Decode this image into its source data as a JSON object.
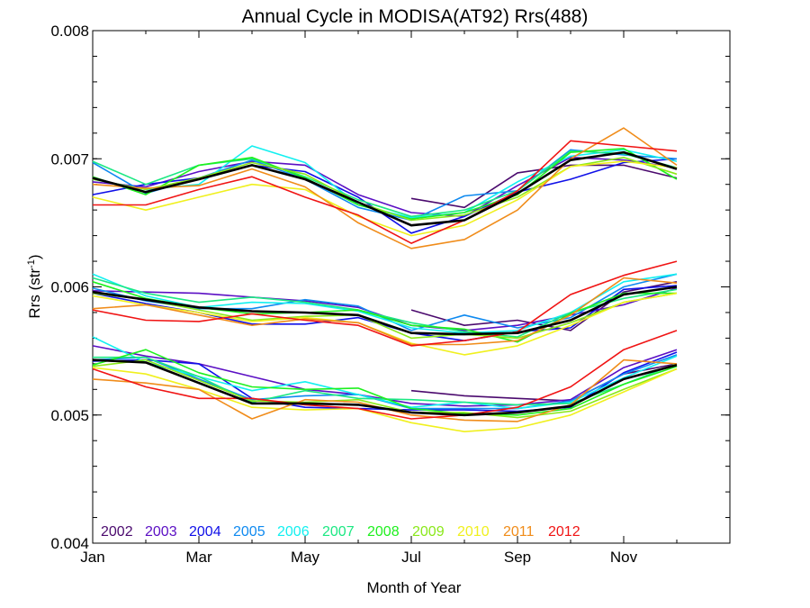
{
  "chart_data": {
    "type": "line",
    "title": "Annual Cycle in MODISA(AT92) Rrs(488)",
    "xlabel": "Month of Year",
    "ylabel_main": "Rrs (str",
    "ylabel_sup": "-1",
    "ylabel_close": ")",
    "xlim": [
      1,
      13
    ],
    "ylim": [
      0.004,
      0.008
    ],
    "xticks": [
      {
        "v": 1,
        "label": "Jan"
      },
      {
        "v": 3,
        "label": "Mar"
      },
      {
        "v": 5,
        "label": "May"
      },
      {
        "v": 7,
        "label": "Jul"
      },
      {
        "v": 9,
        "label": "Sep"
      },
      {
        "v": 11,
        "label": "Nov"
      }
    ],
    "yticks": [
      {
        "v": 0.004,
        "label": "0.004"
      },
      {
        "v": 0.005,
        "label": "0.005"
      },
      {
        "v": 0.006,
        "label": "0.006"
      },
      {
        "v": 0.007,
        "label": "0.007"
      },
      {
        "v": 0.008,
        "label": "0.008"
      }
    ],
    "x": [
      1,
      2,
      3,
      4,
      5,
      6,
      7,
      8,
      9,
      10,
      11,
      12
    ],
    "legend_position": "bottom-left",
    "series": [
      {
        "name": "2002",
        "color": "#4b0a6e",
        "top": [
          null,
          null,
          null,
          null,
          null,
          null,
          6.69,
          6.62,
          6.89,
          6.95,
          6.95,
          6.85
        ],
        "mid": [
          null,
          null,
          null,
          null,
          null,
          null,
          5.82,
          5.7,
          5.74,
          5.66,
          5.96,
          6.04
        ],
        "bot": [
          null,
          null,
          null,
          null,
          null,
          null,
          5.19,
          5.15,
          5.13,
          5.11,
          5.32,
          5.4
        ]
      },
      {
        "name": "2003",
        "color": "#5b0fc4",
        "top": [
          6.82,
          6.78,
          6.9,
          6.98,
          6.95,
          6.72,
          6.58,
          6.55,
          6.79,
          7.01,
          6.99,
          6.93
        ],
        "mid": [
          5.97,
          5.96,
          5.95,
          5.92,
          5.89,
          5.84,
          5.7,
          5.66,
          5.7,
          5.78,
          5.86,
          5.99
        ],
        "bot": [
          5.54,
          5.46,
          5.4,
          5.3,
          5.2,
          5.16,
          5.09,
          5.07,
          5.08,
          5.12,
          5.37,
          5.51
        ]
      },
      {
        "name": "2004",
        "color": "#1010e8",
        "top": [
          6.72,
          6.8,
          6.85,
          6.95,
          6.9,
          6.7,
          6.42,
          6.55,
          6.74,
          6.84,
          6.97,
          7.0
        ],
        "mid": [
          5.95,
          5.87,
          5.8,
          5.71,
          5.71,
          5.76,
          5.64,
          5.58,
          5.65,
          5.68,
          5.98,
          6.01
        ],
        "bot": [
          5.42,
          5.43,
          5.4,
          5.13,
          5.06,
          5.05,
          5.04,
          5.04,
          5.03,
          5.06,
          5.33,
          5.49
        ]
      },
      {
        "name": "2005",
        "color": "#0f8af0",
        "top": [
          6.97,
          6.73,
          6.85,
          6.99,
          6.84,
          6.62,
          6.52,
          6.71,
          6.75,
          7.07,
          7.03,
          7.0
        ],
        "mid": [
          5.99,
          5.89,
          5.83,
          5.83,
          5.9,
          5.85,
          5.66,
          5.78,
          5.68,
          5.76,
          6.0,
          6.1
        ],
        "bot": [
          5.43,
          5.45,
          5.28,
          5.12,
          5.15,
          5.16,
          5.05,
          5.05,
          5.05,
          5.11,
          5.32,
          5.47
        ]
      },
      {
        "name": "2006",
        "color": "#12f0f0",
        "top": [
          6.84,
          6.76,
          6.8,
          7.1,
          6.97,
          6.64,
          6.54,
          6.58,
          6.82,
          7.02,
          7.07,
          6.98
        ],
        "mid": [
          6.1,
          5.93,
          5.84,
          5.88,
          5.87,
          5.81,
          5.68,
          5.64,
          5.66,
          5.8,
          6.04,
          6.1
        ],
        "bot": [
          5.61,
          5.41,
          5.3,
          5.19,
          5.26,
          5.16,
          5.06,
          5.1,
          5.05,
          5.1,
          5.29,
          5.46
        ]
      },
      {
        "name": "2007",
        "color": "#1ce883",
        "top": [
          6.98,
          6.8,
          6.95,
          7.0,
          6.86,
          6.68,
          6.55,
          6.6,
          6.75,
          7.06,
          7.04,
          6.93
        ],
        "mid": [
          6.07,
          5.95,
          5.88,
          5.92,
          5.88,
          5.82,
          5.72,
          5.65,
          5.61,
          5.8,
          5.91,
          5.98
        ],
        "bot": [
          5.45,
          5.45,
          5.3,
          5.1,
          5.19,
          5.13,
          5.12,
          5.1,
          5.08,
          5.09,
          5.24,
          5.4
        ]
      },
      {
        "name": "2008",
        "color": "#1ef01e",
        "top": [
          6.86,
          6.72,
          6.95,
          7.01,
          6.85,
          6.64,
          6.53,
          6.58,
          6.72,
          7.05,
          7.08,
          6.84
        ],
        "mid": [
          6.04,
          5.91,
          5.84,
          5.79,
          5.8,
          5.82,
          5.7,
          5.67,
          5.57,
          5.79,
          5.95,
          5.95
        ],
        "bot": [
          5.39,
          5.51,
          5.33,
          5.22,
          5.2,
          5.21,
          5.05,
          5.01,
          5.0,
          5.05,
          5.24,
          5.38
        ]
      },
      {
        "name": "2009",
        "color": "#8ae81a",
        "top": [
          6.84,
          6.76,
          6.85,
          6.97,
          6.88,
          6.66,
          6.52,
          6.56,
          6.7,
          6.94,
          7.01,
          6.88
        ],
        "mid": [
          5.95,
          5.9,
          5.82,
          5.74,
          5.77,
          5.78,
          5.6,
          5.63,
          5.6,
          5.72,
          5.88,
          5.95
        ],
        "bot": [
          5.38,
          5.43,
          5.27,
          5.11,
          5.1,
          5.12,
          5.02,
          5.02,
          4.98,
          5.03,
          5.2,
          5.36
        ]
      },
      {
        "name": "2010",
        "color": "#f0f01e",
        "top": [
          6.7,
          6.6,
          6.7,
          6.8,
          6.76,
          6.55,
          6.4,
          6.48,
          6.68,
          6.94,
          6.98,
          6.93
        ],
        "mid": [
          5.93,
          5.86,
          5.8,
          5.73,
          5.76,
          5.72,
          5.56,
          5.47,
          5.54,
          5.7,
          5.88,
          5.95
        ],
        "bot": [
          5.37,
          5.32,
          5.2,
          5.06,
          5.04,
          5.05,
          4.94,
          4.87,
          4.9,
          5.0,
          5.18,
          5.36
        ]
      },
      {
        "name": "2011",
        "color": "#f08c1a",
        "top": [
          6.8,
          6.77,
          6.79,
          6.92,
          6.78,
          6.5,
          6.3,
          6.37,
          6.6,
          7.0,
          7.24,
          6.95
        ],
        "mid": [
          5.83,
          5.86,
          5.78,
          5.7,
          5.75,
          5.72,
          5.55,
          5.55,
          5.58,
          5.78,
          6.07,
          6.03
        ],
        "bot": [
          5.28,
          5.25,
          5.2,
          4.97,
          5.12,
          5.1,
          5.0,
          4.96,
          4.95,
          5.08,
          5.43,
          5.4
        ]
      },
      {
        "name": "2012",
        "color": "#f01414",
        "top": [
          6.64,
          6.64,
          6.76,
          6.86,
          6.7,
          6.56,
          6.34,
          6.52,
          6.75,
          7.14,
          7.1,
          7.06
        ],
        "mid": [
          5.82,
          5.74,
          5.73,
          5.79,
          5.74,
          5.7,
          5.54,
          5.58,
          5.65,
          5.94,
          6.09,
          6.2
        ],
        "bot": [
          5.36,
          5.22,
          5.13,
          5.13,
          5.08,
          5.05,
          4.97,
          5.0,
          5.06,
          5.22,
          5.51,
          5.66
        ]
      },
      {
        "name": "",
        "color": "#000000",
        "top": [
          6.85,
          6.74,
          6.84,
          6.95,
          6.84,
          6.66,
          6.48,
          6.52,
          6.73,
          6.99,
          7.05,
          6.92
        ],
        "mid": [
          5.96,
          5.9,
          5.84,
          5.81,
          5.8,
          5.78,
          5.64,
          5.63,
          5.64,
          5.74,
          5.94,
          6.0
        ],
        "bot": [
          5.43,
          5.41,
          5.25,
          5.09,
          5.09,
          5.08,
          5.02,
          5.0,
          5.02,
          5.07,
          5.28,
          5.39
        ]
      }
    ]
  }
}
